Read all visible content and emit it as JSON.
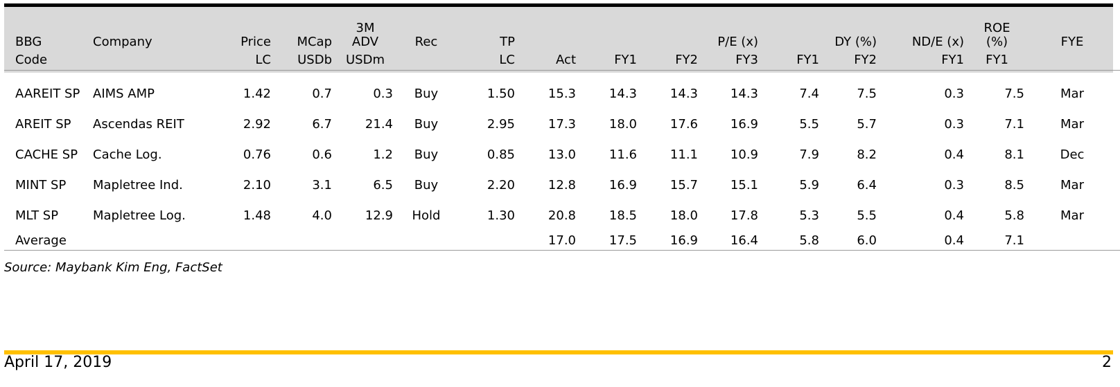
{
  "header": {
    "row1": [
      "BBG",
      "Company",
      "Price",
      "MCap",
      "3M\nADV",
      "Rec",
      "TP",
      "",
      "",
      "",
      "P/E (x)",
      "",
      "DY (%)",
      "ND/E (x)",
      "ROE\n(%)",
      "FYE"
    ],
    "row2": [
      "Code",
      "",
      "LC",
      "USDb",
      "USDm",
      "",
      "LC",
      "Act",
      "FY1",
      "FY2",
      "FY3",
      "FY1",
      "FY2",
      "FY1",
      "FY1",
      ""
    ]
  },
  "rows": [
    [
      "AAREIT SP",
      "AIMS AMP",
      "1.42",
      "0.7",
      "0.3",
      "Buy",
      "1.50",
      "15.3",
      "14.3",
      "14.3",
      "14.3",
      "7.4",
      "7.5",
      "0.3",
      "7.5",
      "Mar"
    ],
    [
      "AREIT SP",
      "Ascendas REIT",
      "2.92",
      "6.7",
      "21.4",
      "Buy",
      "2.95",
      "17.3",
      "18.0",
      "17.6",
      "16.9",
      "5.5",
      "5.7",
      "0.3",
      "7.1",
      "Mar"
    ],
    [
      "CACHE SP",
      "Cache Log.",
      "0.76",
      "0.6",
      "1.2",
      "Buy",
      "0.85",
      "13.0",
      "11.6",
      "11.1",
      "10.9",
      "7.9",
      "8.2",
      "0.4",
      "8.1",
      "Dec"
    ],
    [
      "MINT SP",
      "Mapletree Ind.",
      "2.10",
      "3.1",
      "6.5",
      "Buy",
      "2.20",
      "12.8",
      "16.9",
      "15.7",
      "15.1",
      "5.9",
      "6.4",
      "0.3",
      "8.5",
      "Mar"
    ],
    [
      "MLT SP",
      "Mapletree Log.",
      "1.48",
      "4.0",
      "12.9",
      "Hold",
      "1.30",
      "20.8",
      "18.5",
      "18.0",
      "17.8",
      "5.3",
      "5.5",
      "0.4",
      "5.8",
      "Mar"
    ]
  ],
  "average": [
    "Average",
    "",
    "",
    "",
    "",
    "",
    "",
    "17.0",
    "17.5",
    "16.9",
    "16.4",
    "5.8",
    "6.0",
    "0.4",
    "7.1",
    ""
  ],
  "source": "Source: Maybank Kim Eng, FactSet",
  "footer": {
    "date": "April 17, 2019",
    "page": "2"
  },
  "colors": {
    "header_bg": "#d9d9d9",
    "top_rule": "#000000",
    "footer_rule": "#ffc000"
  }
}
